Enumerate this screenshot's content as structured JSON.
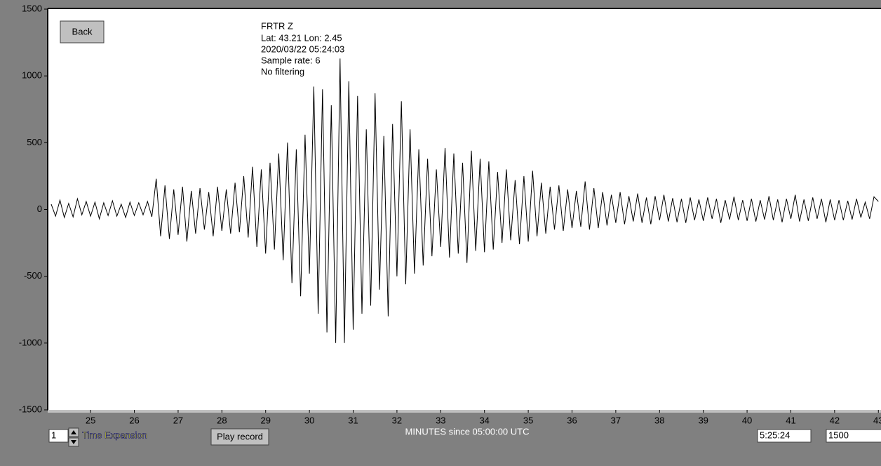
{
  "buttons": {
    "back": "Back",
    "play": "Play record"
  },
  "station_info": [
    "FRTR  Z",
    "Lat: 43.21 Lon: 2.45",
    "2020/03/22 05:24:03",
    "Sample rate: 6",
    "No filtering"
  ],
  "controls": {
    "time_expansion_value": "1",
    "time_expansion_label": "Time Expansion",
    "time_field": "5:25:24",
    "scale_field": "1500"
  },
  "chart_data": {
    "type": "line",
    "x_label": "MINUTES since 05:00:00 UTC",
    "xlim": [
      24.02,
      43.06
    ],
    "ylim": [
      -1500,
      1500
    ],
    "xticks": [
      25,
      26,
      27,
      28,
      29,
      30,
      31,
      32,
      33,
      34,
      35,
      36,
      37,
      38,
      39,
      40,
      41,
      42,
      43
    ],
    "yticks": [
      -1500,
      -1000,
      -500,
      0,
      500,
      1000,
      1500
    ],
    "x": [
      24.1,
      24.2,
      24.3,
      24.4,
      24.5,
      24.6,
      24.7,
      24.8,
      24.9,
      25.0,
      25.1,
      25.2,
      25.3,
      25.4,
      25.5,
      25.6,
      25.7,
      25.8,
      25.9,
      26.0,
      26.1,
      26.2,
      26.3,
      26.4,
      26.5,
      26.6,
      26.7,
      26.8,
      26.9,
      27.0,
      27.1,
      27.2,
      27.3,
      27.4,
      27.5,
      27.6,
      27.7,
      27.8,
      27.9,
      28.0,
      28.1,
      28.2,
      28.3,
      28.4,
      28.5,
      28.6,
      28.7,
      28.8,
      28.9,
      29.0,
      29.1,
      29.2,
      29.3,
      29.4,
      29.5,
      29.6,
      29.7,
      29.8,
      29.9,
      30.0,
      30.1,
      30.2,
      30.3,
      30.4,
      30.5,
      30.6,
      30.7,
      30.8,
      30.9,
      31.0,
      31.1,
      31.2,
      31.3,
      31.4,
      31.5,
      31.6,
      31.7,
      31.8,
      31.9,
      32.0,
      32.1,
      32.2,
      32.3,
      32.4,
      32.5,
      32.6,
      32.7,
      32.8,
      32.9,
      33.0,
      33.1,
      33.2,
      33.3,
      33.4,
      33.5,
      33.6,
      33.7,
      33.8,
      33.9,
      34.0,
      34.1,
      34.2,
      34.3,
      34.4,
      34.5,
      34.6,
      34.7,
      34.8,
      34.9,
      35.0,
      35.1,
      35.2,
      35.3,
      35.4,
      35.5,
      35.6,
      35.7,
      35.8,
      35.9,
      36.0,
      36.1,
      36.2,
      36.3,
      36.4,
      36.5,
      36.6,
      36.7,
      36.8,
      36.9,
      37.0,
      37.1,
      37.2,
      37.3,
      37.4,
      37.5,
      37.6,
      37.7,
      37.8,
      37.9,
      38.0,
      38.1,
      38.2,
      38.3,
      38.4,
      38.5,
      38.6,
      38.7,
      38.8,
      38.9,
      39.0,
      39.1,
      39.2,
      39.3,
      39.4,
      39.5,
      39.6,
      39.7,
      39.8,
      39.9,
      40.0,
      40.1,
      40.2,
      40.3,
      40.4,
      40.5,
      40.6,
      40.7,
      40.8,
      40.9,
      41.0,
      41.1,
      41.2,
      41.3,
      41.4,
      41.5,
      41.6,
      41.7,
      41.8,
      41.9,
      42.0,
      42.1,
      42.2,
      42.3,
      42.4,
      42.5,
      42.6,
      42.7,
      42.8,
      42.9,
      43.0
    ],
    "series": [
      {
        "color": "#000000",
        "values": [
          40,
          -50,
          70,
          -60,
          45,
          -55,
          80,
          -40,
          60,
          -50,
          55,
          -70,
          50,
          -45,
          65,
          -50,
          40,
          -60,
          55,
          -45,
          50,
          -40,
          60,
          -55,
          230,
          -200,
          180,
          -220,
          150,
          -190,
          170,
          -240,
          140,
          -180,
          160,
          -150,
          130,
          -200,
          170,
          -160,
          150,
          -180,
          200,
          -170,
          250,
          -210,
          320,
          -280,
          300,
          -330,
          350,
          -300,
          420,
          -380,
          500,
          -550,
          450,
          -650,
          560,
          -480,
          920,
          -780,
          900,
          -920,
          780,
          -1000,
          1130,
          -1000,
          960,
          -900,
          850,
          -780,
          600,
          -720,
          870,
          -600,
          550,
          -800,
          640,
          -500,
          810,
          -560,
          600,
          -480,
          450,
          -420,
          380,
          -350,
          300,
          -280,
          460,
          -360,
          420,
          -330,
          350,
          -400,
          440,
          -310,
          380,
          -320,
          360,
          -300,
          280,
          -250,
          300,
          -230,
          220,
          -260,
          250,
          -240,
          290,
          -200,
          200,
          -180,
          170,
          -150,
          180,
          -160,
          150,
          -140,
          140,
          -130,
          210,
          -150,
          160,
          -140,
          130,
          -120,
          110,
          -100,
          130,
          -110,
          100,
          -90,
          120,
          -100,
          90,
          -110,
          100,
          -80,
          110,
          -90,
          85,
          -95,
          80,
          -100,
          90,
          -80,
          75,
          -85,
          90,
          -70,
          80,
          -100,
          70,
          -75,
          95,
          -80,
          70,
          -85,
          80,
          -90,
          70,
          -75,
          100,
          -80,
          75,
          -95,
          80,
          -70,
          110,
          -90,
          75,
          -85,
          90,
          -70,
          80,
          -95,
          75,
          -80,
          70,
          -80,
          65,
          -75,
          80,
          -60,
          55,
          -70,
          95,
          60
        ]
      }
    ]
  }
}
